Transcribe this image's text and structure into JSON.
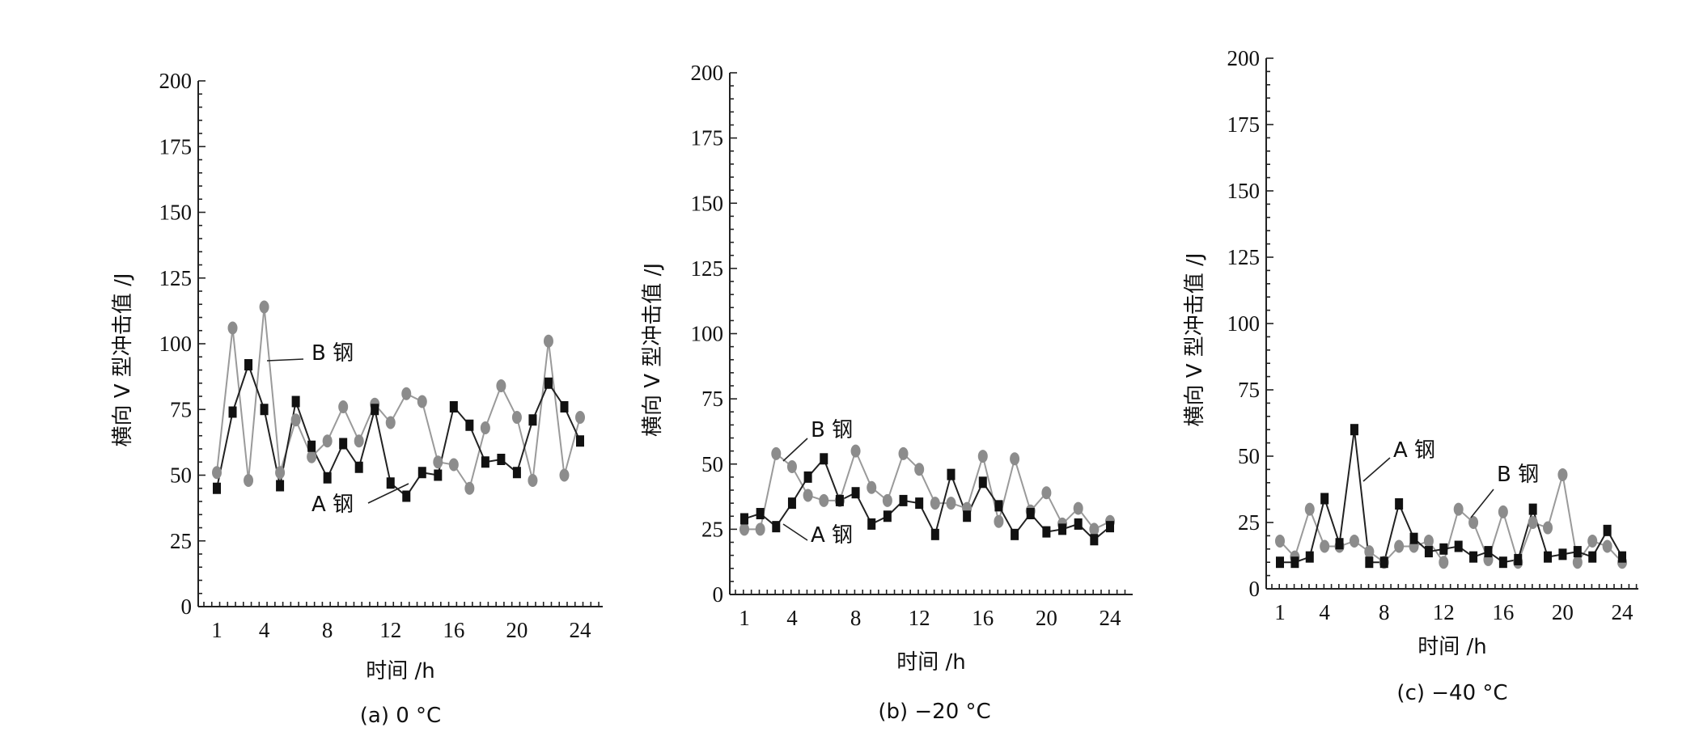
{
  "colors": {
    "series_a": "#111111",
    "line_a": "#222222",
    "series_b": "#8c8c8c",
    "line_b": "#9a9a9a"
  },
  "chart_data": [
    {
      "type": "line",
      "caption": "(a) 0 °C",
      "xlabel": "时间 /h",
      "ylabel": "横向 V 型冲击值 /J",
      "ylim": [
        0,
        200
      ],
      "yticks": [
        "0",
        "25",
        "50",
        "75",
        "100",
        "125",
        "150",
        "175",
        "200"
      ],
      "xticks": [
        "1",
        "4",
        "8",
        "12",
        "16",
        "20",
        "24"
      ],
      "x": [
        1,
        2,
        3,
        4,
        5,
        6,
        7,
        8,
        9,
        10,
        11,
        12,
        13,
        14,
        15,
        16,
        17,
        18,
        19,
        20,
        21,
        22,
        23,
        24
      ],
      "series": [
        {
          "name": "A 钢",
          "marker": "square",
          "values": [
            45,
            74,
            92,
            75,
            46,
            78,
            61,
            49,
            62,
            53,
            75,
            47,
            42,
            51,
            50,
            76,
            69,
            55,
            56,
            51,
            71,
            85,
            76,
            63
          ]
        },
        {
          "name": "B 钢",
          "marker": "circle",
          "values": [
            51,
            106,
            48,
            114,
            51,
            71,
            57,
            63,
            76,
            63,
            77,
            70,
            81,
            78,
            55,
            54,
            45,
            68,
            84,
            72,
            48,
            101,
            50,
            72
          ]
        }
      ]
    },
    {
      "type": "line",
      "caption": "(b) −20 °C",
      "xlabel": "时间 /h",
      "ylabel": "横向 V 型冲击值 /J",
      "ylim": [
        0,
        200
      ],
      "yticks": [
        "0",
        "25",
        "50",
        "75",
        "100",
        "125",
        "150",
        "175",
        "200"
      ],
      "xticks": [
        "1",
        "4",
        "8",
        "12",
        "16",
        "20",
        "24"
      ],
      "x": [
        1,
        2,
        3,
        4,
        5,
        6,
        7,
        8,
        9,
        10,
        11,
        12,
        13,
        14,
        15,
        16,
        17,
        18,
        19,
        20,
        21,
        22,
        23,
        24
      ],
      "series": [
        {
          "name": "A 钢",
          "marker": "square",
          "values": [
            29,
            31,
            26,
            35,
            45,
            52,
            36,
            39,
            27,
            30,
            36,
            35,
            23,
            46,
            30,
            43,
            34,
            23,
            31,
            24,
            25,
            27,
            21,
            26
          ]
        },
        {
          "name": "B 钢",
          "marker": "circle",
          "values": [
            25,
            25,
            54,
            49,
            38,
            36,
            36,
            55,
            41,
            36,
            54,
            48,
            35,
            35,
            33,
            53,
            28,
            52,
            32,
            39,
            27,
            33,
            25,
            28
          ]
        }
      ]
    },
    {
      "type": "line",
      "caption": "(c) −40 °C",
      "xlabel": "时间 /h",
      "ylabel": "横向 V 型冲击值 /J",
      "ylim": [
        0,
        200
      ],
      "yticks": [
        "0",
        "25",
        "50",
        "75",
        "100",
        "125",
        "150",
        "175",
        "200"
      ],
      "xticks": [
        "1",
        "4",
        "8",
        "12",
        "16",
        "20",
        "24"
      ],
      "x": [
        1,
        2,
        3,
        4,
        5,
        6,
        7,
        8,
        9,
        10,
        11,
        12,
        13,
        14,
        15,
        16,
        17,
        18,
        19,
        20,
        21,
        22,
        23,
        24
      ],
      "series": [
        {
          "name": "A 钢",
          "marker": "square",
          "values": [
            10,
            10,
            12,
            34,
            17,
            60,
            10,
            10,
            32,
            19,
            14,
            15,
            16,
            12,
            14,
            10,
            11,
            30,
            12,
            13,
            14,
            12,
            22,
            12
          ]
        },
        {
          "name": "B 钢",
          "marker": "circle",
          "values": [
            18,
            12,
            30,
            16,
            16,
            18,
            14,
            10,
            16,
            16,
            18,
            10,
            30,
            25,
            11,
            29,
            10,
            25,
            23,
            43,
            10,
            18,
            16,
            10
          ]
        }
      ]
    }
  ]
}
